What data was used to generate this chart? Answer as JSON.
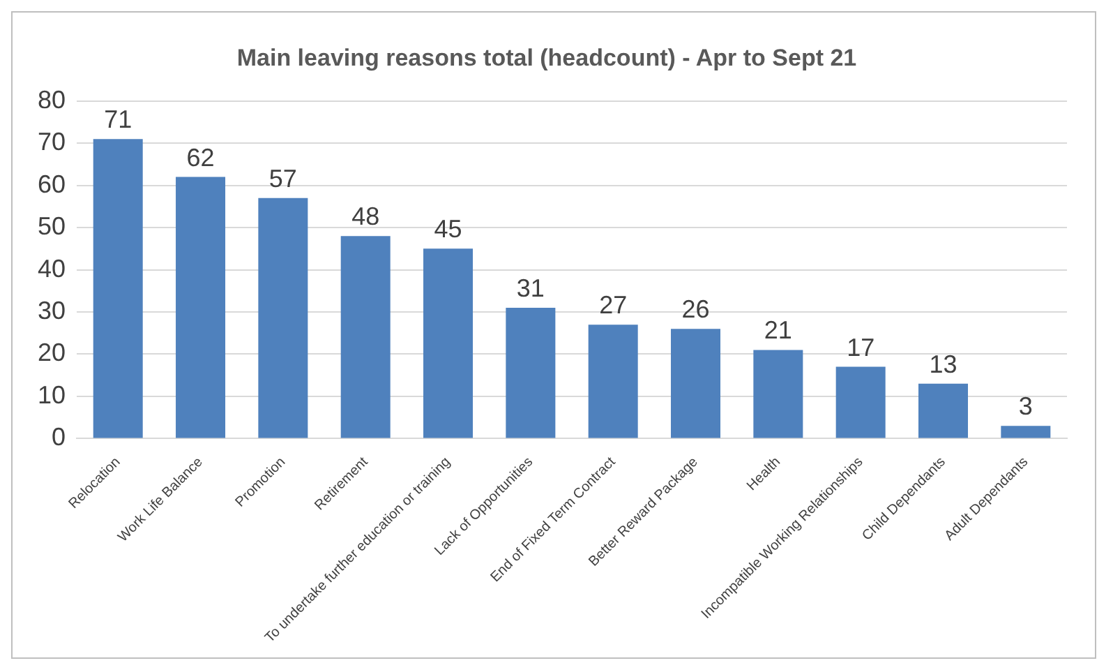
{
  "chart_data": {
    "type": "bar",
    "title": "Main leaving reasons total (headcount) - Apr to Sept 21",
    "categories": [
      "Relocation",
      "Work Life Balance",
      "Promotion",
      "Retirement",
      "To undertake further education or training",
      "Lack of Opportunities",
      "End of Fixed Term Contract",
      "Better Reward Package",
      "Health",
      "Incompatible Working Relationships",
      "Child Dependants",
      "Adult Dependants"
    ],
    "values": [
      71,
      62,
      57,
      48,
      45,
      31,
      27,
      26,
      21,
      17,
      13,
      3
    ],
    "color": "#4f81bd",
    "ylim": [
      0,
      80
    ],
    "yticks": [
      0,
      10,
      20,
      30,
      40,
      50,
      60,
      70,
      80
    ],
    "grid": "y",
    "data_labels": true,
    "legend": false
  }
}
